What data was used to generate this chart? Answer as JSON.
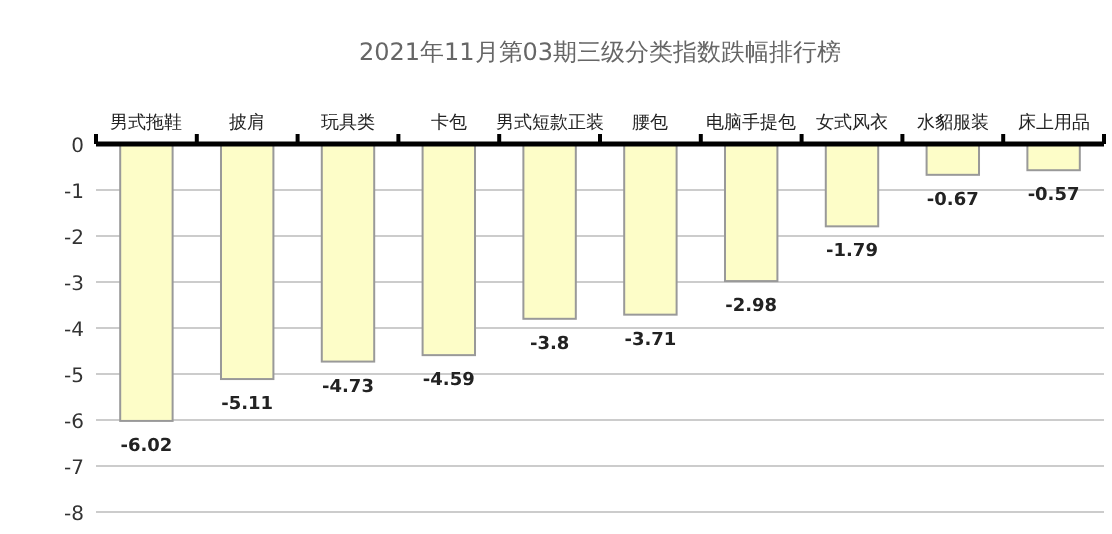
{
  "chart_data": {
    "type": "bar",
    "title": "2021年11月第03期三级分类指数跌幅排行榜",
    "categories": [
      "男式拖鞋",
      "披肩",
      "玩具类",
      "卡包",
      "男式短款正装",
      "腰包",
      "电脑手提包",
      "女式风衣",
      "水貂服装",
      "床上用品"
    ],
    "values": [
      -6.02,
      -5.11,
      -4.73,
      -4.59,
      -3.8,
      -3.71,
      -2.98,
      -1.79,
      -0.67,
      -0.57
    ],
    "color": "#fdfdc8",
    "ylim": [
      -8,
      0
    ],
    "yticks": [
      0,
      -1,
      -2,
      -3,
      -4,
      -5,
      -6,
      -7,
      -8
    ],
    "grid": "y",
    "data_labels": true
  }
}
